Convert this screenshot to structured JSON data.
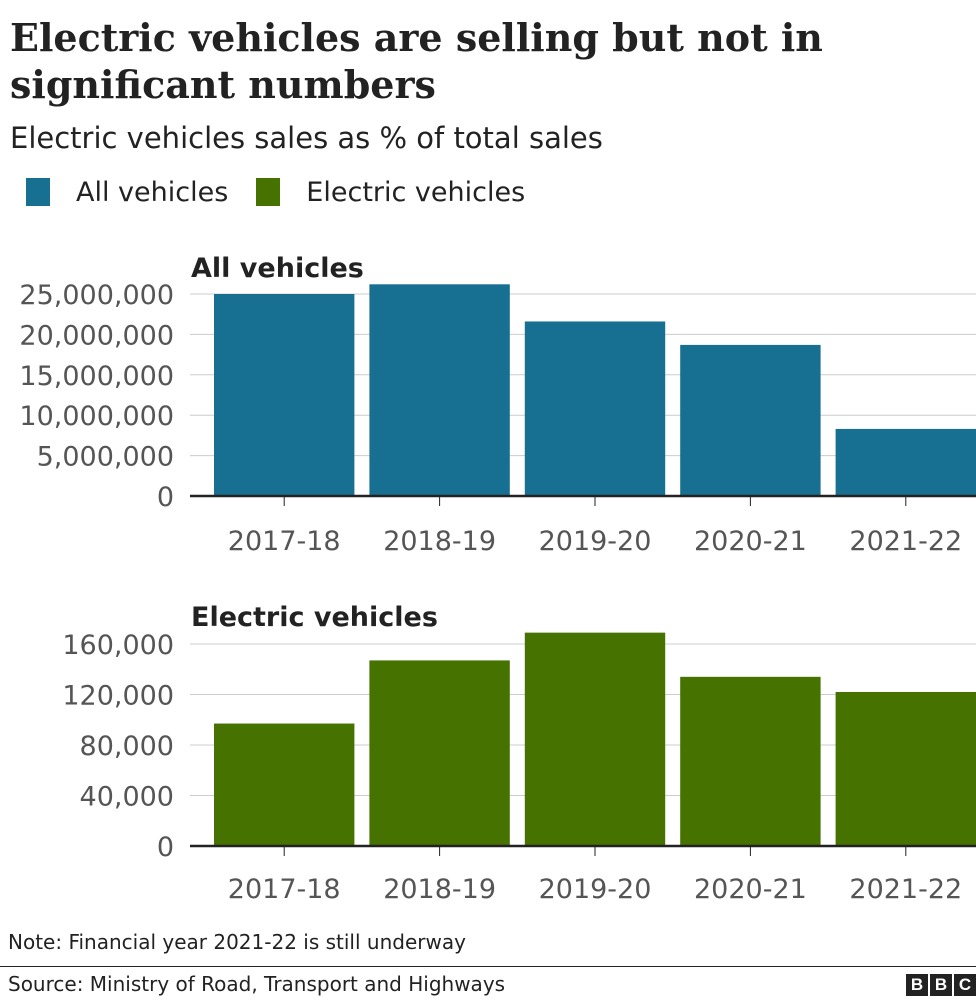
{
  "header": {
    "title": "Electric vehicles are selling but not in significant numbers",
    "subtitle": "Electric vehicles sales as % of total sales"
  },
  "legend": [
    {
      "label": "All vehicles",
      "color": "#176f92"
    },
    {
      "label": "Electric vehicles",
      "color": "#467300"
    }
  ],
  "chart_data": [
    {
      "type": "bar",
      "title": "All vehicles",
      "categories": [
        "2017-18",
        "2018-19",
        "2019-20",
        "2020-21",
        "2021-22"
      ],
      "values": [
        25000000,
        26200000,
        21600000,
        18700000,
        8300000
      ],
      "ylim": [
        0,
        25000000
      ],
      "yticks": [
        0,
        5000000,
        10000000,
        15000000,
        20000000,
        25000000
      ],
      "ytick_labels": [
        "0",
        "5,000,000",
        "10,000,000",
        "15,000,000",
        "20,000,000",
        "25,000,000"
      ],
      "color": "#176f92",
      "grid": true
    },
    {
      "type": "bar",
      "title": "Electric vehicles",
      "categories": [
        "2017-18",
        "2018-19",
        "2019-20",
        "2020-21",
        "2021-22"
      ],
      "values": [
        97000,
        147000,
        169000,
        134000,
        122000
      ],
      "ylim": [
        0,
        160000
      ],
      "yticks": [
        0,
        40000,
        80000,
        120000,
        160000
      ],
      "ytick_labels": [
        "0",
        "40,000",
        "80,000",
        "120,000",
        "160,000"
      ],
      "color": "#467300",
      "grid": true
    }
  ],
  "footer": {
    "note": "Note: Financial year 2021-22 is still underway",
    "source": "Source: Ministry of Road, Transport and Highways",
    "logo_letters": [
      "B",
      "B",
      "C"
    ]
  }
}
